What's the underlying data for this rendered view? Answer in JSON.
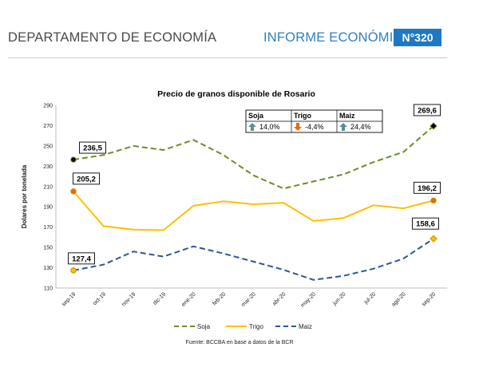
{
  "header": {
    "department": "DEPARTAMENTO DE ECONOMÍA",
    "report": "INFORME ECONÓMICO",
    "number": "N°320"
  },
  "colors": {
    "soja": "#6b8e23",
    "trigo": "#ffc000",
    "maiz": "#2f5597",
    "header_blue": "#1f78c4",
    "up_arrow": "#5b8f8f",
    "down_arrow": "#e46c0a"
  },
  "chart_data": {
    "type": "line",
    "title": "Precio de granos disponible de Rosario",
    "ylabel": "Dolares por tonelada",
    "xlabel": "",
    "ylim": [
      110,
      290
    ],
    "yticks": [
      110,
      130,
      150,
      170,
      190,
      210,
      230,
      250,
      270,
      290
    ],
    "grid": false,
    "legend_position": "bottom",
    "categories": [
      "sep-19",
      "oct-19",
      "nov-19",
      "dic-19",
      "ene-20",
      "feb-20",
      "mar-20",
      "abr-20",
      "may-20",
      "jun-20",
      "jul-20",
      "ago-20",
      "sep-20"
    ],
    "series": [
      {
        "name": "Soja",
        "style": "dash",
        "values": [
          236.5,
          241,
          250,
          246,
          256,
          241,
          221,
          208,
          215,
          222,
          234,
          244,
          269.6
        ]
      },
      {
        "name": "Trigo",
        "style": "solid",
        "values": [
          205.2,
          171,
          167.5,
          167,
          191,
          195.5,
          192.5,
          194,
          176,
          179,
          191.5,
          188.5,
          196.2
        ]
      },
      {
        "name": "Maiz",
        "style": "dash",
        "values": [
          127.4,
          133,
          146,
          141,
          151,
          144,
          136,
          128,
          118,
          122,
          129,
          139,
          158.6
        ]
      }
    ],
    "data_labels": [
      {
        "series": "Soja",
        "index": 0,
        "text": "236,5"
      },
      {
        "series": "Soja",
        "index": 12,
        "text": "269,6"
      },
      {
        "series": "Trigo",
        "index": 0,
        "text": "205,2"
      },
      {
        "series": "Trigo",
        "index": 12,
        "text": "196,2"
      },
      {
        "series": "Maiz",
        "index": 0,
        "text": "127,4"
      },
      {
        "series": "Maiz",
        "index": 12,
        "text": "158,6"
      }
    ],
    "summary_table": {
      "columns": [
        "Soja",
        "Trigo",
        "Maiz"
      ],
      "values": [
        "14,0%",
        "-4,4%",
        "24,4%"
      ],
      "directions": [
        "up",
        "down",
        "up"
      ]
    },
    "source": "Fuente: BCCBA en base a datos de la BCR"
  }
}
